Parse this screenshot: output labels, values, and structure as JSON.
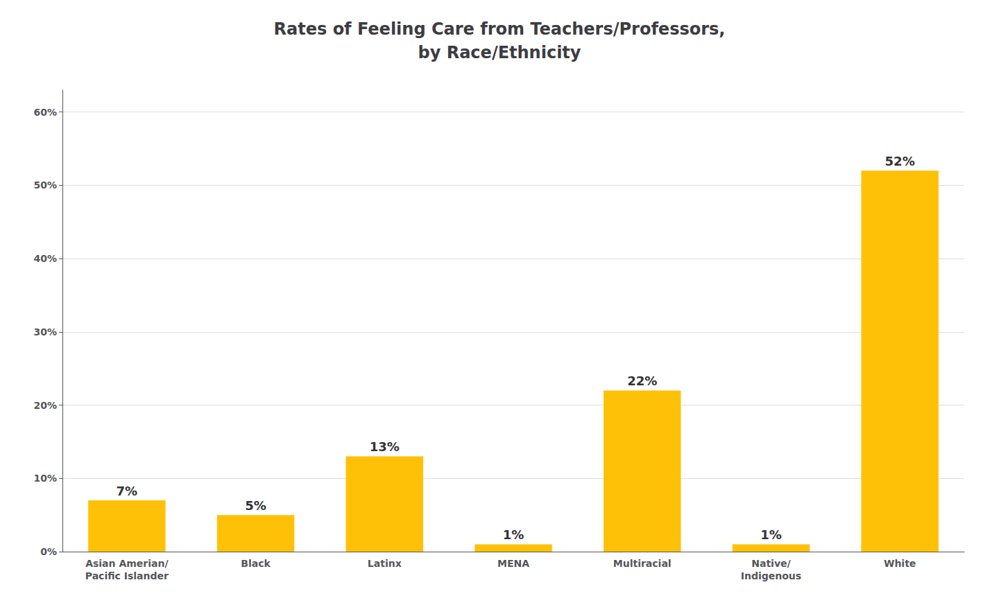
{
  "chart_data": {
    "type": "bar",
    "title": "Rates of Feeling Care from Teachers/Professors,\nby Race/Ethnicity",
    "categories": [
      "Asian Amerian/\nPacific Islander",
      "Black",
      "Latinx",
      "MENA",
      "Multiracial",
      "Native/\nIndigenous",
      "White"
    ],
    "values": [
      7,
      5,
      13,
      1,
      22,
      1,
      52
    ],
    "value_labels": [
      "7%",
      "5%",
      "13%",
      "1%",
      "22%",
      "1%",
      "52%"
    ],
    "data_labels": true,
    "color": "#FFC107",
    "ylim": [
      0,
      63
    ],
    "yticks": [
      {
        "value": 0,
        "label": "0%"
      },
      {
        "value": 10,
        "label": "10%"
      },
      {
        "value": 20,
        "label": "20%"
      },
      {
        "value": 30,
        "label": "30%"
      },
      {
        "value": 40,
        "label": "40%"
      },
      {
        "value": 50,
        "label": "50%"
      },
      {
        "value": 60,
        "label": "60%"
      }
    ],
    "grid": true
  }
}
